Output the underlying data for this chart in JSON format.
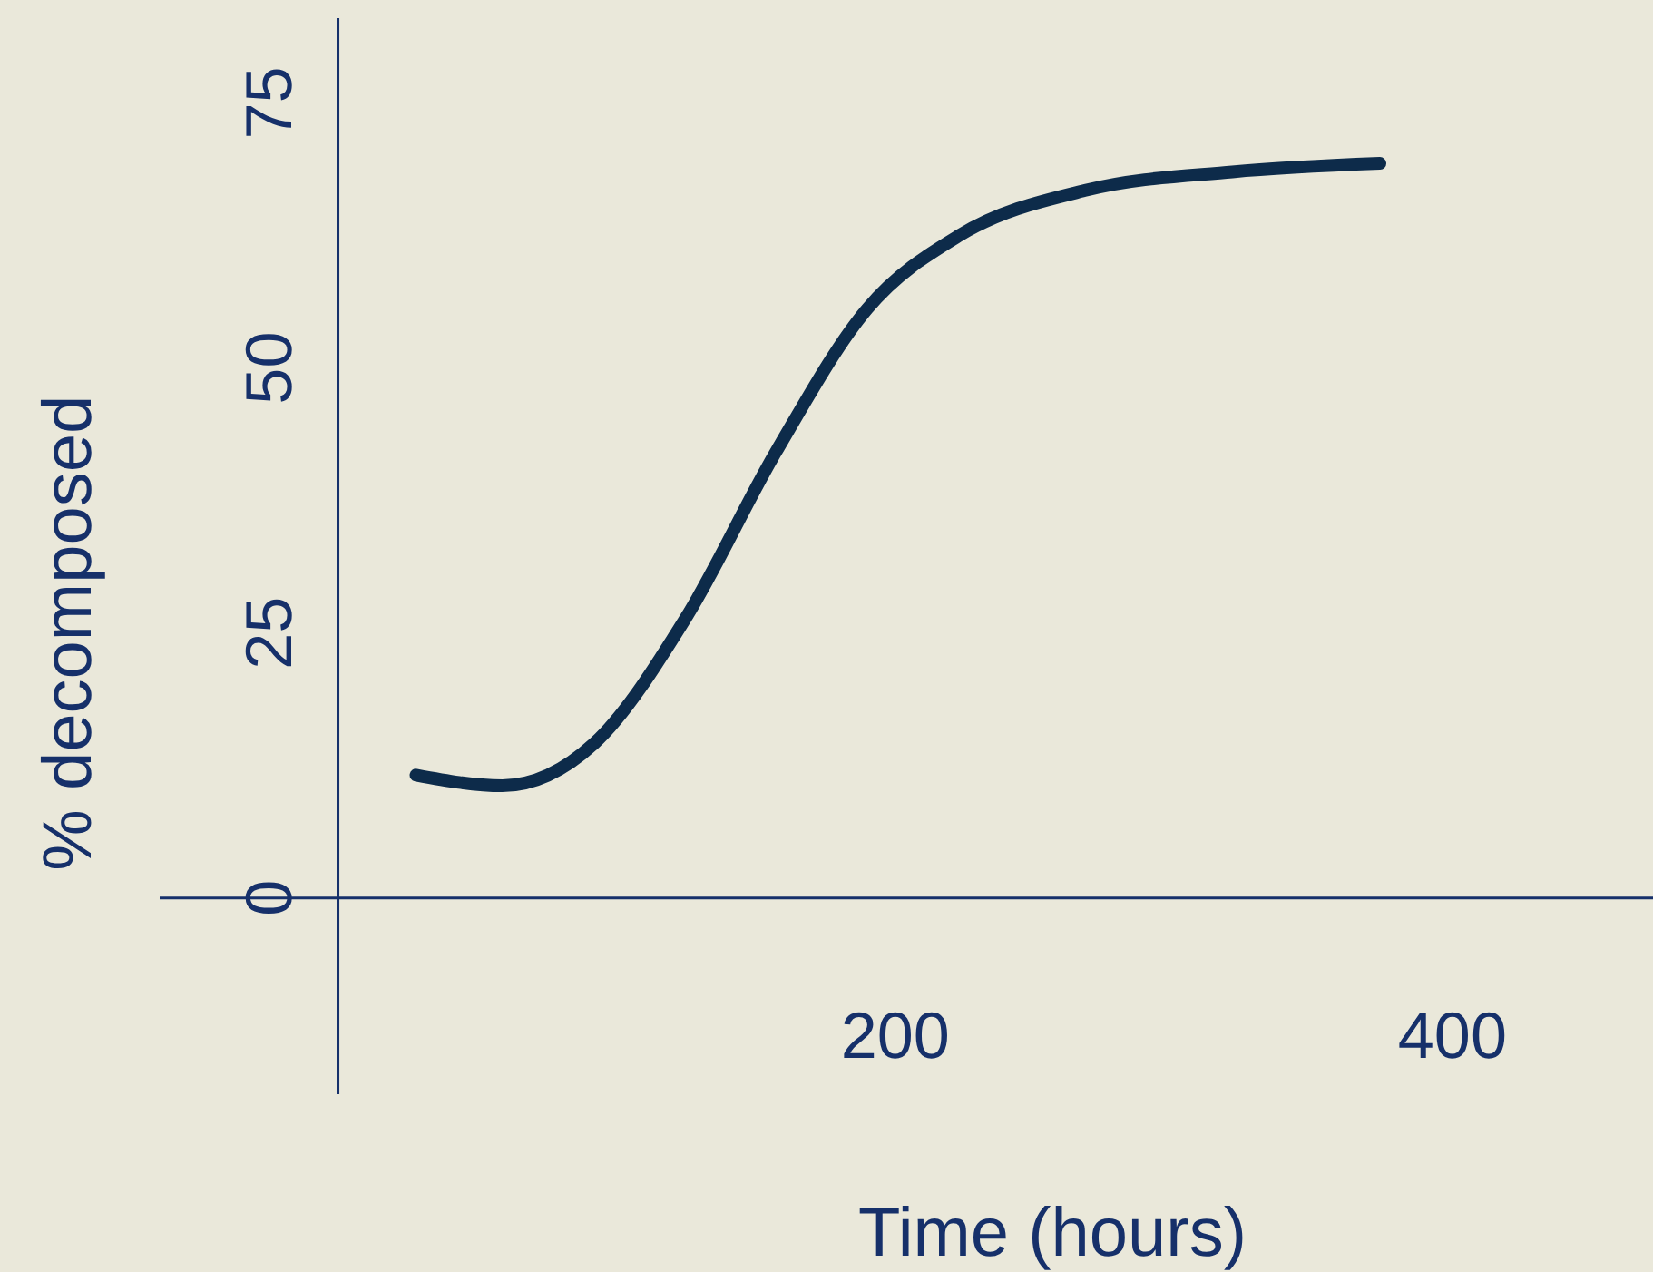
{
  "chart_data": {
    "type": "line",
    "xlabel": "Time (hours)",
    "ylabel": "% decomposed",
    "x": [
      28,
      59,
      92,
      125,
      157,
      190,
      223,
      269,
      321,
      374
    ],
    "series": [
      {
        "color": "#0d2b4a",
        "values": [
          11.6,
          10.6,
          14.6,
          26.5,
          42,
          55.6,
          62.5,
          66.8,
          68.5,
          69.3
        ]
      }
    ],
    "xlim": [
      -64,
      472
    ],
    "ylim": [
      -18.5,
      83
    ],
    "xticks": [
      200,
      400
    ],
    "yticks": [
      0,
      25,
      50,
      75
    ],
    "grid": false,
    "marker": "none",
    "line_style": "solid"
  }
}
